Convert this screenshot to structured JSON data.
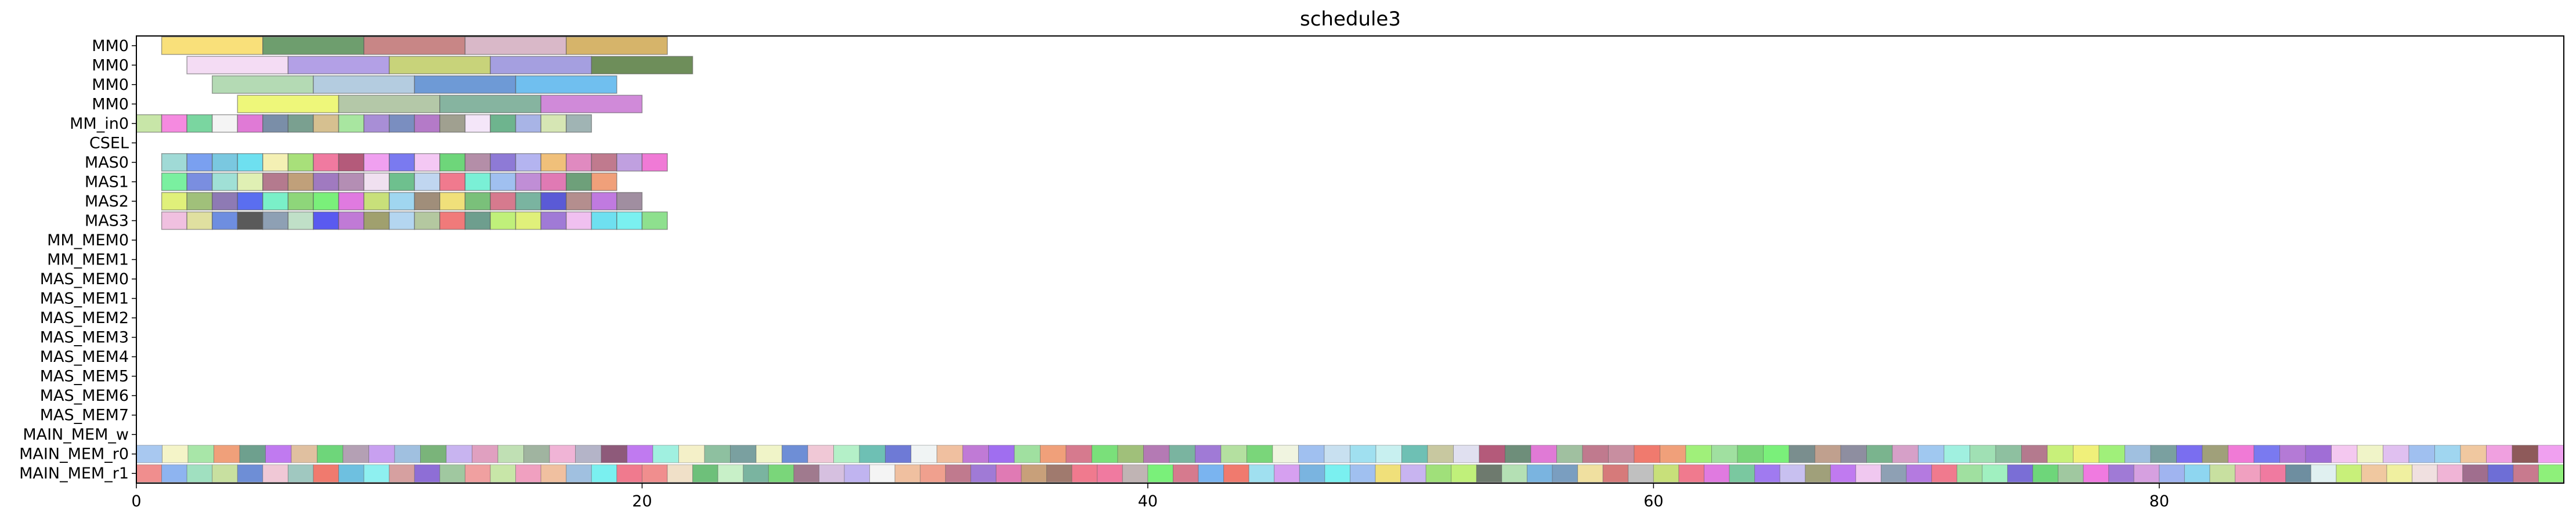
{
  "chart_data": {
    "type": "gantt",
    "title": "schedule3",
    "xlabel": "",
    "ylabel": "",
    "xlim": [
      0,
      96
    ],
    "xticks": [
      "0",
      "20",
      "40",
      "60",
      "80"
    ],
    "xtick_values": [
      0,
      20,
      40,
      60,
      80
    ],
    "rows": [
      "MM0",
      "MM0",
      "MM0",
      "MM0",
      "MM_in0",
      "CSEL",
      "MAS0",
      "MAS1",
      "MAS2",
      "MAS3",
      "MM_MEM0",
      "MM_MEM1",
      "MAS_MEM0",
      "MAS_MEM1",
      "MAS_MEM2",
      "MAS_MEM3",
      "MAS_MEM4",
      "MAS_MEM5",
      "MAS_MEM6",
      "MAS_MEM7",
      "MAIN_MEM_w",
      "MAIN_MEM_r0",
      "MAIN_MEM_r1"
    ],
    "tasks": [
      {
        "row": 0,
        "start": 1,
        "end": 5,
        "color": "#f9e07a"
      },
      {
        "row": 0,
        "start": 5,
        "end": 9,
        "color": "#6e9e6e"
      },
      {
        "row": 0,
        "start": 9,
        "end": 13,
        "color": "#c88686"
      },
      {
        "row": 0,
        "start": 13,
        "end": 17,
        "color": "#d9b8c8"
      },
      {
        "row": 0,
        "start": 17,
        "end": 21,
        "color": "#d6b46a"
      },
      {
        "row": 1,
        "start": 2,
        "end": 6,
        "color": "#f4dcf4"
      },
      {
        "row": 1,
        "start": 6,
        "end": 10,
        "color": "#b3a0e6"
      },
      {
        "row": 1,
        "start": 10,
        "end": 14,
        "color": "#c8d37a"
      },
      {
        "row": 1,
        "start": 14,
        "end": 18,
        "color": "#a59fe0"
      },
      {
        "row": 1,
        "start": 18,
        "end": 22,
        "color": "#6e8e5a"
      },
      {
        "row": 2,
        "start": 3,
        "end": 7,
        "color": "#b4dab4"
      },
      {
        "row": 2,
        "start": 7,
        "end": 11,
        "color": "#b4cce0"
      },
      {
        "row": 2,
        "start": 11,
        "end": 15,
        "color": "#6e9ad6"
      },
      {
        "row": 2,
        "start": 15,
        "end": 19,
        "color": "#70bfef"
      },
      {
        "row": 3,
        "start": 4,
        "end": 8,
        "color": "#eef77a"
      },
      {
        "row": 3,
        "start": 8,
        "end": 12,
        "color": "#b4c8a8"
      },
      {
        "row": 3,
        "start": 12,
        "end": 16,
        "color": "#86b4a0"
      },
      {
        "row": 3,
        "start": 16,
        "end": 20,
        "color": "#d08ad9"
      },
      {
        "row": 4,
        "start": 0,
        "end": 1,
        "color": "#c8e6a8"
      },
      {
        "row": 4,
        "start": 1,
        "end": 2,
        "color": "#f58ae0"
      },
      {
        "row": 4,
        "start": 2,
        "end": 3,
        "color": "#7ad6a0"
      },
      {
        "row": 4,
        "start": 3,
        "end": 4,
        "color": "#f4f4f4"
      },
      {
        "row": 4,
        "start": 4,
        "end": 5,
        "color": "#e07ad6"
      },
      {
        "row": 4,
        "start": 5,
        "end": 6,
        "color": "#7a8ea8"
      },
      {
        "row": 4,
        "start": 6,
        "end": 7,
        "color": "#7aa090"
      },
      {
        "row": 4,
        "start": 7,
        "end": 8,
        "color": "#d6c090"
      },
      {
        "row": 4,
        "start": 8,
        "end": 9,
        "color": "#a8e6a0"
      },
      {
        "row": 4,
        "start": 9,
        "end": 10,
        "color": "#a88ed6"
      },
      {
        "row": 4,
        "start": 10,
        "end": 11,
        "color": "#7a8ec0"
      },
      {
        "row": 4,
        "start": 11,
        "end": 12,
        "color": "#b47ac8"
      },
      {
        "row": 4,
        "start": 12,
        "end": 13,
        "color": "#a0a090"
      },
      {
        "row": 4,
        "start": 13,
        "end": 14,
        "color": "#f4e6f9"
      },
      {
        "row": 4,
        "start": 14,
        "end": 15,
        "color": "#6eb48e"
      },
      {
        "row": 4,
        "start": 15,
        "end": 16,
        "color": "#a8b4e6"
      },
      {
        "row": 4,
        "start": 16,
        "end": 17,
        "color": "#d6e6b4"
      },
      {
        "row": 4,
        "start": 17,
        "end": 18,
        "color": "#a0b4b4"
      },
      {
        "row": 6,
        "start": 1,
        "end": 2,
        "color": "#a0dad6"
      },
      {
        "row": 6,
        "start": 2,
        "end": 3,
        "color": "#7aa0f0"
      },
      {
        "row": 6,
        "start": 3,
        "end": 4,
        "color": "#7ac8e0"
      },
      {
        "row": 6,
        "start": 4,
        "end": 5,
        "color": "#6ee0f0"
      },
      {
        "row": 6,
        "start": 5,
        "end": 6,
        "color": "#f4f0b4"
      },
      {
        "row": 6,
        "start": 6,
        "end": 7,
        "color": "#a8e07a"
      },
      {
        "row": 6,
        "start": 7,
        "end": 8,
        "color": "#f07aa0"
      },
      {
        "row": 6,
        "start": 8,
        "end": 9,
        "color": "#b45a7a"
      },
      {
        "row": 6,
        "start": 9,
        "end": 10,
        "color": "#f0a0f0"
      },
      {
        "row": 6,
        "start": 10,
        "end": 11,
        "color": "#7a7af0"
      },
      {
        "row": 6,
        "start": 11,
        "end": 12,
        "color": "#f4c8f4"
      },
      {
        "row": 6,
        "start": 12,
        "end": 13,
        "color": "#6ed67a"
      },
      {
        "row": 6,
        "start": 13,
        "end": 14,
        "color": "#b48ea8"
      },
      {
        "row": 6,
        "start": 14,
        "end": 15,
        "color": "#8e7ad6"
      },
      {
        "row": 6,
        "start": 15,
        "end": 16,
        "color": "#b4b4f0"
      },
      {
        "row": 6,
        "start": 16,
        "end": 17,
        "color": "#f0c07a"
      },
      {
        "row": 6,
        "start": 17,
        "end": 18,
        "color": "#e08ac0"
      },
      {
        "row": 6,
        "start": 18,
        "end": 19,
        "color": "#c07a8e"
      },
      {
        "row": 6,
        "start": 19,
        "end": 20,
        "color": "#c0a0e0"
      },
      {
        "row": 6,
        "start": 20,
        "end": 21,
        "color": "#f07ad6"
      },
      {
        "row": 7,
        "start": 1,
        "end": 2,
        "color": "#7af0a0"
      },
      {
        "row": 7,
        "start": 2,
        "end": 3,
        "color": "#7a8ee0"
      },
      {
        "row": 7,
        "start": 3,
        "end": 4,
        "color": "#a0e0d6"
      },
      {
        "row": 7,
        "start": 4,
        "end": 5,
        "color": "#e0f0b4"
      },
      {
        "row": 7,
        "start": 5,
        "end": 6,
        "color": "#b47a8e"
      },
      {
        "row": 7,
        "start": 6,
        "end": 7,
        "color": "#c0a07a"
      },
      {
        "row": 7,
        "start": 7,
        "end": 8,
        "color": "#a07ac0"
      },
      {
        "row": 7,
        "start": 8,
        "end": 9,
        "color": "#b48eb4"
      },
      {
        "row": 7,
        "start": 9,
        "end": 10,
        "color": "#f0e0f0"
      },
      {
        "row": 7,
        "start": 10,
        "end": 11,
        "color": "#6ec08e"
      },
      {
        "row": 7,
        "start": 11,
        "end": 12,
        "color": "#c0d6f0"
      },
      {
        "row": 7,
        "start": 12,
        "end": 13,
        "color": "#f07a8e"
      },
      {
        "row": 7,
        "start": 13,
        "end": 14,
        "color": "#7af0d6"
      },
      {
        "row": 7,
        "start": 14,
        "end": 15,
        "color": "#a0c0f0"
      },
      {
        "row": 7,
        "start": 15,
        "end": 16,
        "color": "#c08ed6"
      },
      {
        "row": 7,
        "start": 16,
        "end": 17,
        "color": "#e07ab4"
      },
      {
        "row": 7,
        "start": 17,
        "end": 18,
        "color": "#6ea07a"
      },
      {
        "row": 7,
        "start": 18,
        "end": 19,
        "color": "#f0a07a"
      },
      {
        "row": 8,
        "start": 1,
        "end": 2,
        "color": "#e0f07a"
      },
      {
        "row": 8,
        "start": 2,
        "end": 3,
        "color": "#a0c07a"
      },
      {
        "row": 8,
        "start": 3,
        "end": 4,
        "color": "#8e7ab4"
      },
      {
        "row": 8,
        "start": 4,
        "end": 5,
        "color": "#5a6ef0"
      },
      {
        "row": 8,
        "start": 5,
        "end": 6,
        "color": "#7af0c8"
      },
      {
        "row": 8,
        "start": 6,
        "end": 7,
        "color": "#8ed67a"
      },
      {
        "row": 8,
        "start": 7,
        "end": 8,
        "color": "#7af07a"
      },
      {
        "row": 8,
        "start": 8,
        "end": 9,
        "color": "#e07ae0"
      },
      {
        "row": 8,
        "start": 9,
        "end": 10,
        "color": "#c8e07a"
      },
      {
        "row": 8,
        "start": 10,
        "end": 11,
        "color": "#a0d6f0"
      },
      {
        "row": 8,
        "start": 11,
        "end": 12,
        "color": "#a08e7a"
      },
      {
        "row": 8,
        "start": 12,
        "end": 13,
        "color": "#f0e07a"
      },
      {
        "row": 8,
        "start": 13,
        "end": 14,
        "color": "#7ac07a"
      },
      {
        "row": 8,
        "start": 14,
        "end": 15,
        "color": "#d67a8e"
      },
      {
        "row": 8,
        "start": 15,
        "end": 16,
        "color": "#7ab4a0"
      },
      {
        "row": 8,
        "start": 16,
        "end": 17,
        "color": "#5a5ad6"
      },
      {
        "row": 8,
        "start": 17,
        "end": 18,
        "color": "#b48e8e"
      },
      {
        "row": 8,
        "start": 18,
        "end": 19,
        "color": "#c07ae0"
      },
      {
        "row": 8,
        "start": 19,
        "end": 20,
        "color": "#a08ea0"
      },
      {
        "row": 9,
        "start": 1,
        "end": 2,
        "color": "#f0c0e0"
      },
      {
        "row": 9,
        "start": 2,
        "end": 3,
        "color": "#e0e0a0"
      },
      {
        "row": 9,
        "start": 3,
        "end": 4,
        "color": "#6e8ee0"
      },
      {
        "row": 9,
        "start": 4,
        "end": 5,
        "color": "#5a5a5a"
      },
      {
        "row": 9,
        "start": 5,
        "end": 6,
        "color": "#8ea0b4"
      },
      {
        "row": 9,
        "start": 6,
        "end": 7,
        "color": "#c0e0c8"
      },
      {
        "row": 9,
        "start": 7,
        "end": 8,
        "color": "#5a5af0"
      },
      {
        "row": 9,
        "start": 8,
        "end": 9,
        "color": "#c07ad6"
      },
      {
        "row": 9,
        "start": 9,
        "end": 10,
        "color": "#a0a06e"
      },
      {
        "row": 9,
        "start": 10,
        "end": 11,
        "color": "#b4d6f0"
      },
      {
        "row": 9,
        "start": 11,
        "end": 12,
        "color": "#b4c8a0"
      },
      {
        "row": 9,
        "start": 12,
        "end": 13,
        "color": "#f07a7a"
      },
      {
        "row": 9,
        "start": 13,
        "end": 14,
        "color": "#6e9e8e"
      },
      {
        "row": 9,
        "start": 14,
        "end": 15,
        "color": "#c0f07a"
      },
      {
        "row": 9,
        "start": 15,
        "end": 16,
        "color": "#e0f07a"
      },
      {
        "row": 9,
        "start": 16,
        "end": 17,
        "color": "#a07ad6"
      },
      {
        "row": 9,
        "start": 17,
        "end": 18,
        "color": "#f0c0f0"
      },
      {
        "row": 9,
        "start": 18,
        "end": 19,
        "color": "#6ee0f0"
      },
      {
        "row": 9,
        "start": 19,
        "end": 20,
        "color": "#7af0f0"
      },
      {
        "row": 9,
        "start": 20,
        "end": 21,
        "color": "#8ee08e"
      }
    ],
    "memory_rows": [
      {
        "row": 21,
        "start": 0,
        "end": 96,
        "colors": [
          "#a8c8f0",
          "#f4f4c8",
          "#a8e6a8",
          "#f0a07a",
          "#6ea08e",
          "#c07af0",
          "#e0c0a0",
          "#6ed67a",
          "#b4a0b4",
          "#c8a0f0",
          "#a0c0e0",
          "#7ab47a",
          "#c8b4f0",
          "#e0a0c0",
          "#c0e0b4",
          "#a0b4a0",
          "#f0b4d6",
          "#b4b4c8",
          "#8e5a7a",
          "#c07af0",
          "#a0f0e0",
          "#f4f0c8",
          "#8ec0a0",
          "#7aa0a0",
          "#f0f4c8",
          "#6e8ed6",
          "#f0c8d6",
          "#b4f0c8",
          "#6ec0b4",
          "#6e7ad6",
          "#f0f4f4",
          "#f0c0a0",
          "#c07ad6",
          "#a06ef0",
          "#a0e0a0",
          "#f0a07a",
          "#d67a8e",
          "#7ae07a",
          "#a0c07a",
          "#b47ab4",
          "#7ab4a0",
          "#a07ad6",
          "#b4e0a0",
          "#7ad67a",
          "#f0f4e0",
          "#a0c0f0",
          "#c8e0f0",
          "#a0e0f0",
          "#c8f0f0",
          "#6ec0b4",
          "#c8c8a0",
          "#e0e0f0",
          "#b45a7a",
          "#6e8e7a",
          "#e07ad6",
          "#a0c0a0",
          "#c07a8e",
          "#c88ea0",
          "#f07a6e",
          "#f0a07a",
          "#a0f07a",
          "#a0e0a0",
          "#7ad67a",
          "#7af07a",
          "#7a8e8e",
          "#c0a08e",
          "#8e8ea0",
          "#7ab48e",
          "#d6a0c8",
          "#a0c8f0",
          "#a0f0e0",
          "#a0e0b4",
          "#8ec0a0",
          "#b47a8e",
          "#c8f07a",
          "#f0f07a",
          "#a0f07a",
          "#a0c0e0",
          "#7aa0a0",
          "#7a6ef0",
          "#a0a07a",
          "#f07ad6",
          "#7a7af0",
          "#b47ad6",
          "#a06ed6",
          "#f4c8f0",
          "#f0f4c8",
          "#e0c0f0",
          "#a0c0f0",
          "#a0d6f0",
          "#f0c8a0",
          "#f0a0e0",
          "#8e5a5a",
          "#f0a0f0"
        ]
      },
      {
        "row": 22,
        "start": 0,
        "end": 96,
        "colors": [
          "#f08e8e",
          "#8eb4f0",
          "#a0e0c0",
          "#c8e0a0",
          "#6e8ed6",
          "#f0c8d6",
          "#a0c8c0",
          "#f07a6e",
          "#6ec0e0",
          "#8ef0f0",
          "#d6a0a0",
          "#8e6ed6",
          "#a0c8a0",
          "#f0a0a0",
          "#c8e6a8",
          "#f0a0c0",
          "#f0c0a0",
          "#a0c0e0",
          "#7af0f0",
          "#f07a8e",
          "#f08e8e",
          "#f0e0c8",
          "#6ec07a",
          "#c8f0c8",
          "#7ab4a0",
          "#7ad67a",
          "#a07a8e",
          "#d6c0e0",
          "#c0b4f0",
          "#f4f4f4",
          "#f0c0a0",
          "#f0a08e",
          "#c07a8e",
          "#a07ad6",
          "#e07ab4",
          "#c8a07a",
          "#a07a6e",
          "#f07a8e",
          "#f07aa0",
          "#c0b4b4",
          "#7af07a",
          "#d67a8e",
          "#7ab4f0",
          "#f07a6e",
          "#a0e0f0",
          "#d6a0f0",
          "#7ab4e0",
          "#7af0f0",
          "#a0c0f0",
          "#f0e07a",
          "#c8b4f0",
          "#a0e07a",
          "#c0f07a",
          "#6e7a6e",
          "#b4e0b4",
          "#7ab4e0",
          "#7a9ec0",
          "#f0e0a0",
          "#d67a7a",
          "#c0c0c0",
          "#c8e07a",
          "#f07a8e",
          "#e07ae0",
          "#7ac8a0",
          "#a07af0",
          "#c8c0f0",
          "#a0a07a",
          "#c07af0",
          "#f0c8f0",
          "#8ea0b4",
          "#b47ae0",
          "#f07a8e",
          "#a0e0a0",
          "#a0f0c0",
          "#7a6ed6",
          "#6ed67a",
          "#a0c8a0",
          "#f07ae0",
          "#a07ad6",
          "#d6a0e0",
          "#a0b4f0",
          "#8ed6f0",
          "#c8e0a0",
          "#f0a0c0",
          "#f07aa0",
          "#6e8ea0",
          "#e0f0f0",
          "#c8f07a",
          "#f0c8a0",
          "#f0f0a0",
          "#f0e0e0",
          "#f0b4d6",
          "#a06e8e",
          "#6e6ed6",
          "#c87a8e",
          "#8ef07a"
        ]
      }
    ]
  }
}
